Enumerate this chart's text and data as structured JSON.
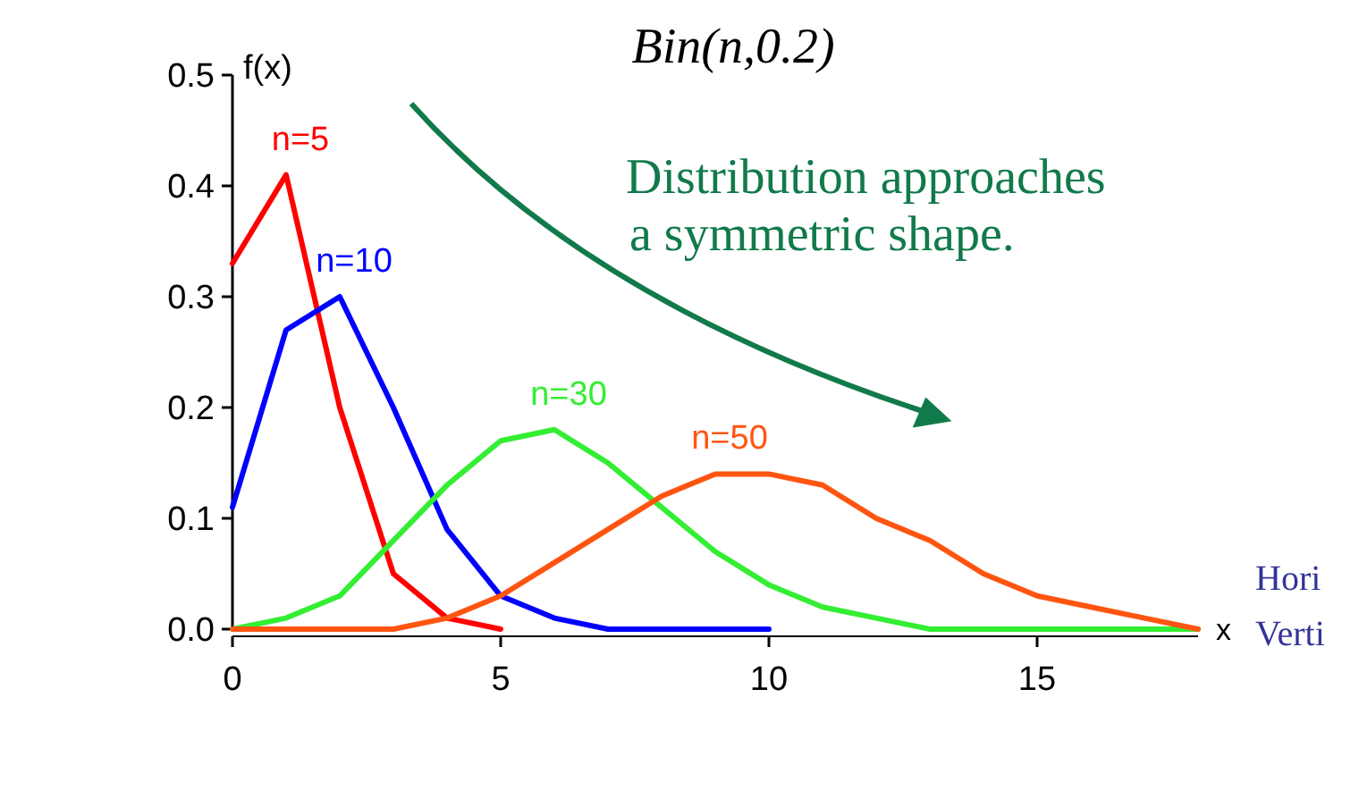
{
  "chart_data": {
    "type": "line",
    "title": "Bin(n,0.2)",
    "ylabel": "f(x)",
    "xlabel": "x",
    "x": [
      0,
      1,
      2,
      3,
      4,
      5,
      6,
      7,
      8,
      9,
      10,
      11,
      12,
      13,
      14,
      15,
      16,
      17,
      18
    ],
    "series": [
      {
        "name": "n=5",
        "color": "#ff0000",
        "x": [
          0,
          1,
          2,
          3,
          4,
          5
        ],
        "values": [
          0.33,
          0.41,
          0.2,
          0.05,
          0.01,
          0
        ]
      },
      {
        "name": "n=10",
        "color": "#0000ff",
        "x": [
          0,
          1,
          2,
          3,
          4,
          5,
          6,
          7,
          8,
          9,
          10
        ],
        "values": [
          0.11,
          0.27,
          0.3,
          0.2,
          0.09,
          0.03,
          0.01,
          0,
          0,
          0,
          0
        ]
      },
      {
        "name": "n=30",
        "color": "#33ee33",
        "values": [
          0,
          0.01,
          0.03,
          0.08,
          0.13,
          0.17,
          0.18,
          0.15,
          0.11,
          0.07,
          0.04,
          0.02,
          0.01,
          0,
          0,
          0,
          0,
          0,
          0
        ]
      },
      {
        "name": "n=50",
        "color": "#ff5511",
        "values": [
          0,
          0,
          0,
          0,
          0.01,
          0.03,
          0.06,
          0.09,
          0.12,
          0.14,
          0.14,
          0.13,
          0.1,
          0.08,
          0.05,
          0.03,
          0.02,
          0.01,
          0
        ]
      }
    ],
    "xlim": [
      0,
      18
    ],
    "xticks": [
      0,
      5,
      10,
      15
    ],
    "ylim": [
      0,
      0.5
    ],
    "yticks": [
      {
        "value": 0,
        "label": "0.0"
      },
      {
        "value": 0.1,
        "label": "0.1"
      },
      {
        "value": 0.2,
        "label": "0.2"
      },
      {
        "value": 0.3,
        "label": "0.3"
      },
      {
        "value": 0.4,
        "label": "0.4"
      },
      {
        "value": 0.5,
        "label": "0.5"
      }
    ],
    "grid": false,
    "marker": "none",
    "line_style": "solid",
    "annotations": [
      "Distribution approaches\na symmetric shape.",
      "Hori",
      "Verti"
    ]
  }
}
